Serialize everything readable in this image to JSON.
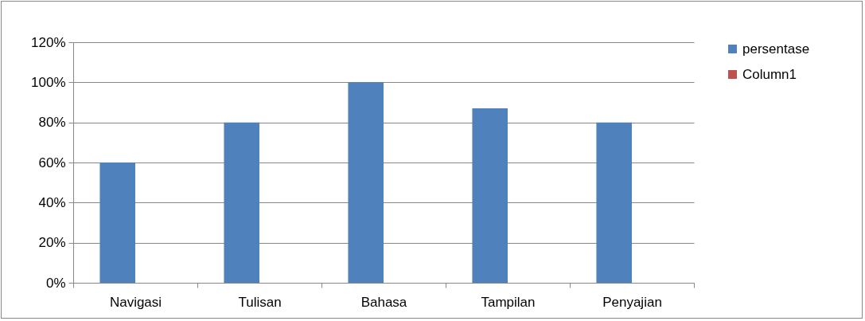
{
  "chart_data": {
    "type": "bar",
    "categories": [
      "Navigasi",
      "Tulisan",
      "Bahasa",
      "Tampilan",
      "Penyajian"
    ],
    "series": [
      {
        "name": "persentase",
        "color": "#4f81bd",
        "values": [
          60,
          80,
          100,
          87,
          80
        ]
      },
      {
        "name": "Column1",
        "color": "#c0504d",
        "values": [
          null,
          null,
          null,
          null,
          null
        ]
      }
    ],
    "ylim": [
      0,
      120
    ],
    "yticks": [
      {
        "value": 0,
        "label": "0%"
      },
      {
        "value": 20,
        "label": "20%"
      },
      {
        "value": 40,
        "label": "40%"
      },
      {
        "value": 60,
        "label": "60%"
      },
      {
        "value": 80,
        "label": "80%"
      },
      {
        "value": 100,
        "label": "100%"
      },
      {
        "value": 120,
        "label": "120%"
      }
    ],
    "grid": "y",
    "legend": "right"
  }
}
